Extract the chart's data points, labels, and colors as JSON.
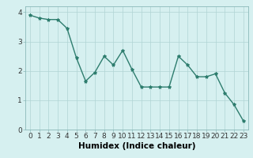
{
  "x": [
    0,
    1,
    2,
    3,
    4,
    5,
    6,
    7,
    8,
    9,
    10,
    11,
    12,
    13,
    14,
    15,
    16,
    17,
    18,
    19,
    20,
    21,
    22,
    23
  ],
  "y": [
    3.9,
    3.8,
    3.75,
    3.75,
    3.45,
    2.45,
    1.65,
    1.95,
    2.5,
    2.2,
    2.7,
    2.05,
    1.45,
    1.45,
    1.45,
    1.45,
    2.5,
    2.2,
    1.8,
    1.8,
    1.9,
    1.25,
    0.85,
    0.3
  ],
  "line_color": "#2e7d6e",
  "marker": "*",
  "marker_size": 3,
  "bg_color": "#d6f0f0",
  "grid_color": "#b0d4d4",
  "xlabel": "Humidex (Indice chaleur)",
  "xlim": [
    -0.5,
    23.5
  ],
  "ylim": [
    0,
    4.2
  ],
  "yticks": [
    0,
    1,
    2,
    3,
    4
  ],
  "xtick_labels": [
    "0",
    "1",
    "2",
    "3",
    "4",
    "5",
    "6",
    "7",
    "8",
    "9",
    "10",
    "11",
    "12",
    "13",
    "14",
    "15",
    "16",
    "17",
    "18",
    "19",
    "20",
    "21",
    "22",
    "23"
  ],
  "xlabel_fontsize": 7.5,
  "tick_fontsize": 6.5,
  "linewidth": 1.0
}
